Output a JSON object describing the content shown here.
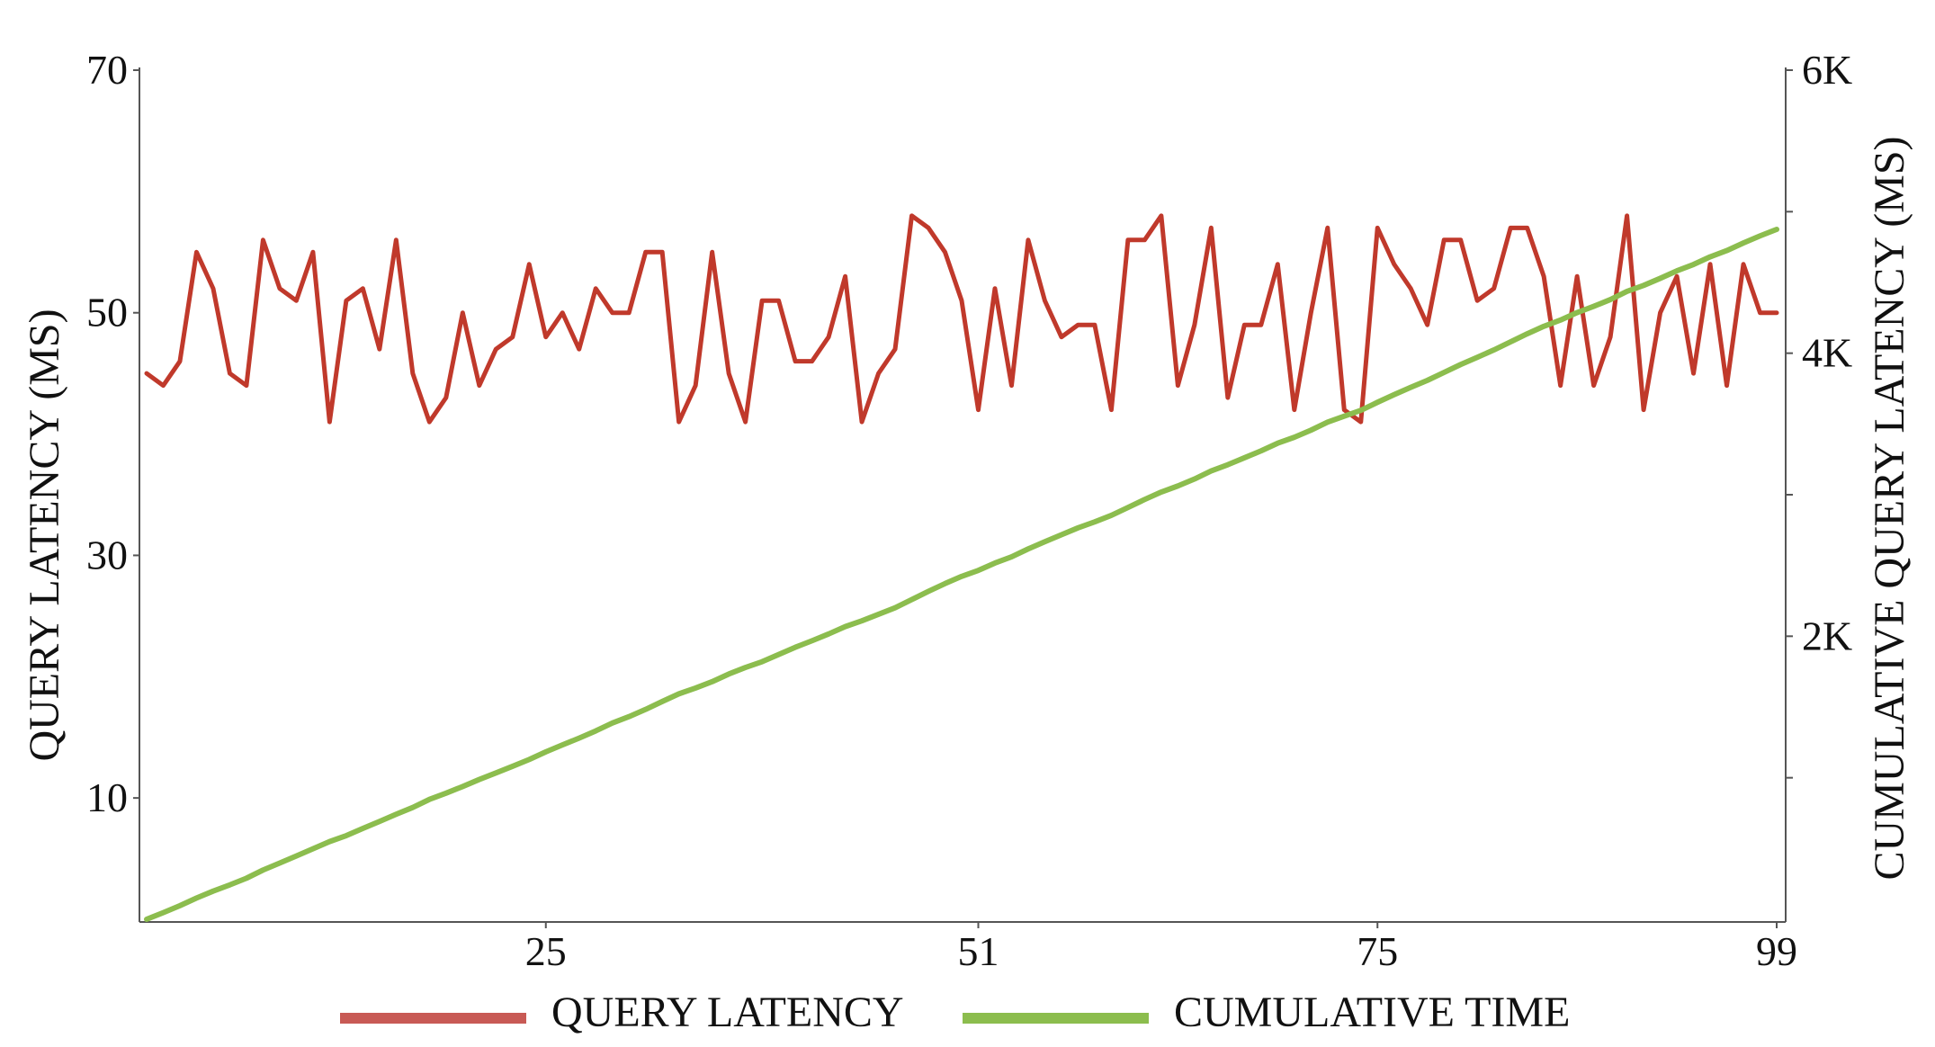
{
  "chart_data": {
    "type": "line",
    "x_ticks": [
      25,
      51,
      75,
      99
    ],
    "xlim": [
      1,
      99
    ],
    "y_left": {
      "label": "QUERY LATENCY (MS)",
      "ticks": [
        10,
        30,
        50,
        70
      ],
      "lim": [
        0,
        70
      ]
    },
    "y_right": {
      "label": "CUMULATIVE QUERY LATENCY (MS)",
      "ticks": [
        "2K",
        "4K",
        "6K"
      ],
      "tick_values": [
        1000,
        2000,
        3000,
        4000,
        5000,
        6000
      ],
      "lim": [
        0,
        6000
      ]
    },
    "x": [
      1,
      2,
      3,
      4,
      5,
      6,
      7,
      8,
      9,
      10,
      11,
      12,
      13,
      14,
      15,
      16,
      17,
      18,
      19,
      20,
      21,
      22,
      23,
      24,
      25,
      26,
      27,
      28,
      29,
      30,
      31,
      32,
      33,
      34,
      35,
      36,
      37,
      38,
      39,
      40,
      41,
      42,
      43,
      44,
      45,
      46,
      47,
      48,
      49,
      50,
      51,
      52,
      53,
      54,
      55,
      56,
      57,
      58,
      59,
      60,
      61,
      62,
      63,
      64,
      65,
      66,
      67,
      68,
      69,
      70,
      71,
      72,
      73,
      74,
      75,
      76,
      77,
      78,
      79,
      80,
      81,
      82,
      83,
      84,
      85,
      86,
      87,
      88,
      89,
      90,
      91,
      92,
      93,
      94,
      95,
      96,
      97,
      98,
      99
    ],
    "series": [
      {
        "name": "QUERY LATENCY",
        "axis": "left",
        "color": "#c0392b",
        "values": [
          45,
          44,
          46,
          55,
          52,
          45,
          44,
          56,
          52,
          51,
          55,
          41,
          51,
          52,
          47,
          56,
          45,
          41,
          43,
          50,
          44,
          47,
          48,
          54,
          48,
          50,
          47,
          52,
          50,
          50,
          55,
          55,
          41,
          44,
          55,
          45,
          41,
          51,
          51,
          46,
          46,
          48,
          53,
          41,
          45,
          47,
          58,
          57,
          55,
          51,
          42,
          52,
          44,
          56,
          51,
          48,
          49,
          49,
          42,
          56,
          56,
          58,
          44,
          49,
          57,
          43,
          49,
          49,
          54,
          42,
          50,
          57,
          42,
          41,
          57,
          54,
          52,
          49,
          56,
          56,
          51,
          52,
          57,
          57,
          53,
          44,
          53,
          44,
          48,
          58,
          42,
          50,
          53,
          45,
          54,
          44,
          54,
          50,
          50
        ],
        "values_tail": [
          48
        ]
      },
      {
        "name": "CUMULATIVE TIME",
        "axis": "right",
        "color": "#8cbd4e",
        "values": [
          0,
          47,
          96,
          150,
          199,
          243,
          290,
          348,
          397,
          447,
          498,
          549,
          591,
          642,
          691,
          742,
          790,
          847,
          891,
          938,
          988,
          1034,
          1081,
          1129,
          1183,
          1232,
          1280,
          1331,
          1387,
          1432,
          1483,
          1539,
          1593,
          1634,
          1679,
          1733,
          1779,
          1820,
          1871,
          1922,
          1968,
          2016,
          2068,
          2109,
          2155,
          2201,
          2259,
          2317,
          2372,
          2423,
          2465,
          2517,
          2561,
          2617,
          2668,
          2717,
          2766,
          2808,
          2854,
          2910,
          2966,
          3019,
          3062,
          3111,
          3168,
          3212,
          3261,
          3310,
          3364,
          3406,
          3456,
          3513,
          3555,
          3596,
          3653,
          3707,
          3759,
          3808,
          3864,
          3920,
          3971,
          4023,
          4080,
          4137,
          4190,
          4234,
          4287,
          4331,
          4379,
          4437,
          4479,
          4529,
          4582,
          4627,
          4681,
          4725,
          4779,
          4829,
          4875
        ]
      }
    ],
    "legend": {
      "position": "bottom",
      "items": [
        {
          "label": "QUERY LATENCY",
          "color": "#c0392b"
        },
        {
          "label": "CUMULATIVE TIME",
          "color": "#8cbd4e"
        }
      ]
    },
    "grid": false
  }
}
